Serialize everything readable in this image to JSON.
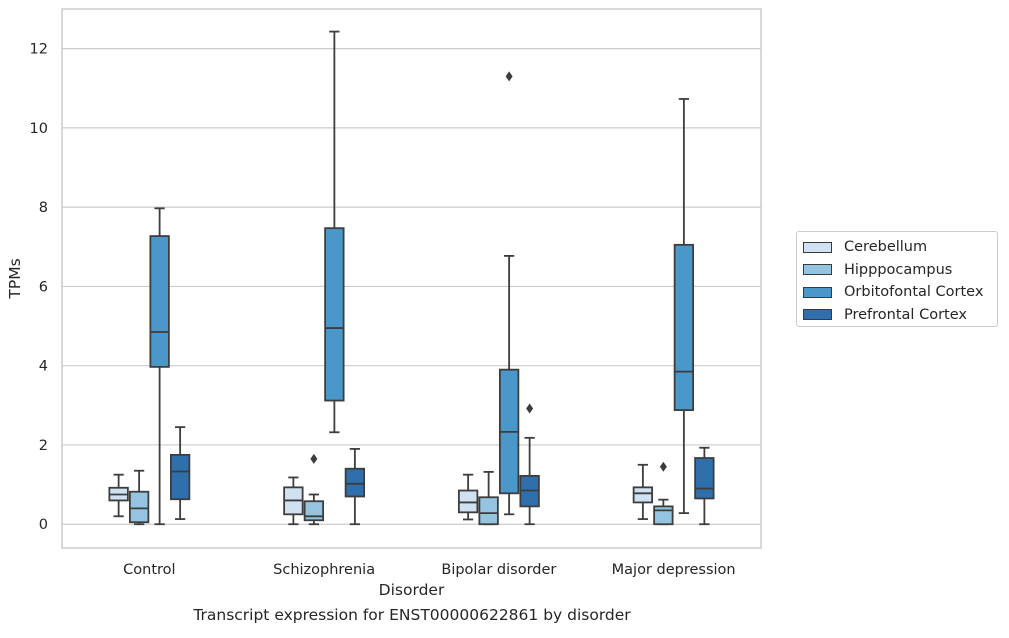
{
  "chart_data": {
    "type": "box",
    "title": "Transcript expression for ENST00000622861 by disorder",
    "xlabel": "Disorder",
    "ylabel": "TPMs",
    "ylim": [
      -0.6,
      13.0
    ],
    "yticks": [
      0,
      2,
      4,
      6,
      8,
      10,
      12
    ],
    "grid": true,
    "legend_position": "right",
    "categories": [
      "Control",
      "Schizophrenia",
      "Bipolar disorder",
      "Major depression"
    ],
    "series": [
      {
        "name": "Cerebellum",
        "color": "#d0e1f2",
        "boxes": [
          {
            "whislo": 0.2,
            "q1": 0.6,
            "med": 0.75,
            "q3": 0.92,
            "whishi": 1.25,
            "fliers": []
          },
          {
            "whislo": 0.0,
            "q1": 0.25,
            "med": 0.6,
            "q3": 0.93,
            "whishi": 1.18,
            "fliers": []
          },
          {
            "whislo": 0.12,
            "q1": 0.3,
            "med": 0.55,
            "q3": 0.85,
            "whishi": 1.25,
            "fliers": []
          },
          {
            "whislo": 0.13,
            "q1": 0.55,
            "med": 0.78,
            "q3": 0.93,
            "whishi": 1.5,
            "fliers": []
          }
        ]
      },
      {
        "name": "Hipppocampus",
        "color": "#94c4df",
        "boxes": [
          {
            "whislo": 0.0,
            "q1": 0.05,
            "med": 0.4,
            "q3": 0.82,
            "whishi": 1.35,
            "fliers": []
          },
          {
            "whislo": 0.0,
            "q1": 0.1,
            "med": 0.2,
            "q3": 0.58,
            "whishi": 0.75,
            "fliers": [
              1.65
            ]
          },
          {
            "whislo": 0.0,
            "q1": 0.0,
            "med": 0.28,
            "q3": 0.68,
            "whishi": 1.32,
            "fliers": []
          },
          {
            "whislo": 0.0,
            "q1": 0.0,
            "med": 0.35,
            "q3": 0.45,
            "whishi": 0.62,
            "fliers": [
              1.45
            ]
          }
        ]
      },
      {
        "name": "Orbitofontal Cortex",
        "color": "#4a98c9",
        "boxes": [
          {
            "whislo": 0.0,
            "q1": 3.97,
            "med": 4.85,
            "q3": 7.27,
            "whishi": 7.97,
            "fliers": []
          },
          {
            "whislo": 2.32,
            "q1": 3.12,
            "med": 4.95,
            "q3": 7.47,
            "whishi": 12.43,
            "fliers": []
          },
          {
            "whislo": 0.25,
            "q1": 0.78,
            "med": 2.33,
            "q3": 3.9,
            "whishi": 6.77,
            "fliers": [
              11.3
            ]
          },
          {
            "whislo": 0.28,
            "q1": 2.88,
            "med": 3.85,
            "q3": 7.05,
            "whishi": 10.73,
            "fliers": []
          }
        ]
      },
      {
        "name": "Prefrontal Cortex",
        "color": "#2e6fac",
        "boxes": [
          {
            "whislo": 0.13,
            "q1": 0.63,
            "med": 1.33,
            "q3": 1.75,
            "whishi": 2.45,
            "fliers": []
          },
          {
            "whislo": 0.0,
            "q1": 0.7,
            "med": 1.02,
            "q3": 1.4,
            "whishi": 1.9,
            "fliers": []
          },
          {
            "whislo": 0.0,
            "q1": 0.45,
            "med": 0.85,
            "q3": 1.22,
            "whishi": 2.18,
            "fliers": [
              2.92
            ]
          },
          {
            "whislo": 0.0,
            "q1": 0.65,
            "med": 0.9,
            "q3": 1.67,
            "whishi": 1.93,
            "fliers": []
          }
        ]
      }
    ]
  }
}
